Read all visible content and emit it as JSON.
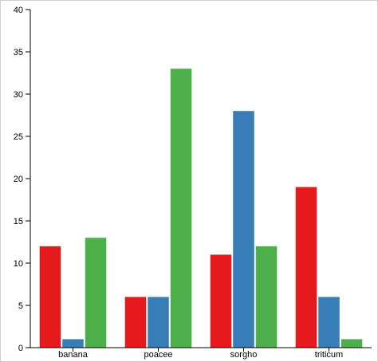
{
  "chart_data": {
    "type": "bar",
    "categories": [
      "banana",
      "poacee",
      "sorgho",
      "triticum"
    ],
    "series": [
      {
        "values": [
          12,
          6,
          11,
          19
        ],
        "color": "#e41a1c"
      },
      {
        "values": [
          1,
          6,
          28,
          6
        ],
        "color": "#377eb8"
      },
      {
        "values": [
          13,
          33,
          12,
          1
        ],
        "color": "#4daf4a"
      }
    ],
    "ylim": [
      0,
      40
    ],
    "yticks": [
      "0",
      "5",
      "10",
      "15",
      "20",
      "25",
      "30",
      "35",
      "40"
    ],
    "grid": false,
    "legend": "none"
  }
}
